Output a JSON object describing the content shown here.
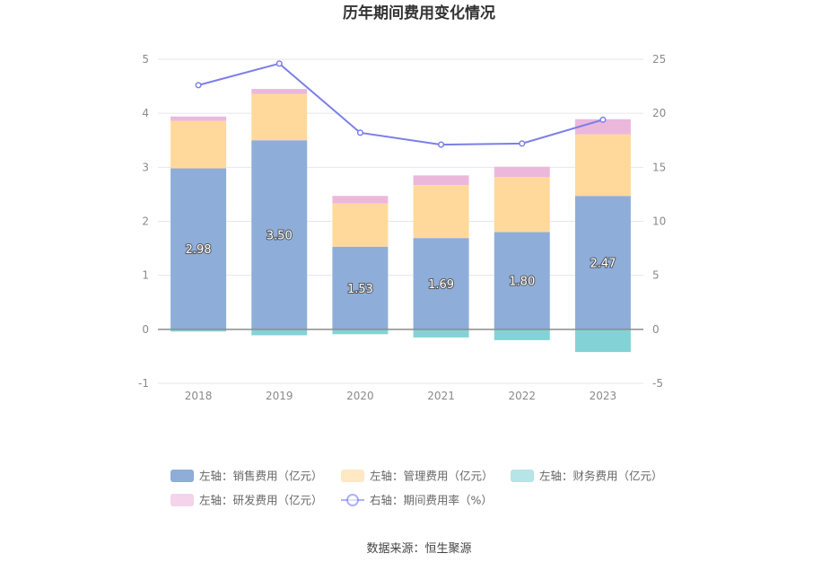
{
  "chart_data": {
    "type": "bar",
    "title": "历年期间费用变化情况",
    "categories": [
      "2018",
      "2019",
      "2020",
      "2021",
      "2022",
      "2023"
    ],
    "stacked": true,
    "left_axis": {
      "ylim": [
        -1,
        5
      ],
      "ticks": [
        "-1",
        "0",
        "1",
        "2",
        "3",
        "4",
        "5"
      ]
    },
    "right_axis": {
      "ylim": [
        -5,
        25
      ],
      "ticks": [
        "-5",
        "0",
        "5",
        "10",
        "15",
        "20",
        "25"
      ]
    },
    "series": [
      {
        "name": "左轴：销售费用（亿元）",
        "axis": "left",
        "type": "bar",
        "color": "#8eadd9",
        "values": [
          2.98,
          3.5,
          1.53,
          1.69,
          1.8,
          2.47
        ],
        "labels": [
          "2.98",
          "3.50",
          "1.53",
          "1.69",
          "1.80",
          "2.47"
        ]
      },
      {
        "name": "左轴：管理费用（亿元）",
        "axis": "left",
        "type": "bar",
        "color": "#ffd99b",
        "values": [
          0.88,
          0.86,
          0.8,
          0.98,
          1.02,
          1.14
        ]
      },
      {
        "name": "左轴：财务费用（亿元）",
        "axis": "left",
        "type": "bar",
        "color": "#83d3d6",
        "values": [
          -0.04,
          -0.11,
          -0.09,
          -0.15,
          -0.2,
          -0.42
        ]
      },
      {
        "name": "左轴：研发费用（亿元）",
        "axis": "left",
        "type": "bar",
        "color": "#ebb8dc",
        "values": [
          0.08,
          0.09,
          0.14,
          0.18,
          0.19,
          0.28
        ]
      },
      {
        "name": "右轴：期间费用率（%）",
        "axis": "right",
        "type": "line",
        "color": "#7b7fe8",
        "values": [
          22.6,
          24.6,
          18.2,
          17.1,
          17.2,
          19.4
        ]
      }
    ],
    "grid": true,
    "legend_position": "bottom"
  },
  "source_text": "数据来源：恒生聚源"
}
